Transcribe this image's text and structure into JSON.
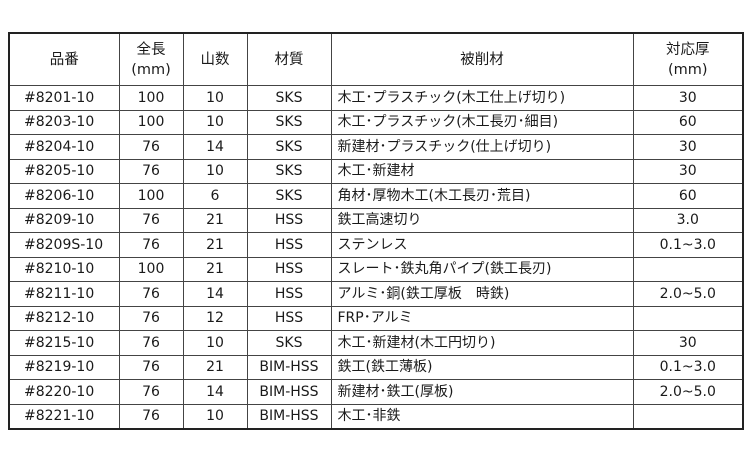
{
  "headers": {
    "code": "品番",
    "length": "全長",
    "length_unit": "(mm)",
    "teeth": "山数",
    "material": "材質",
    "workpiece": "被削材",
    "thickness": "対応厚",
    "thickness_unit": "(mm)"
  },
  "rows": [
    {
      "code": "#8201-10",
      "length": "100",
      "teeth": "10",
      "material": "SKS",
      "workpiece": "木工･プラスチック(木工仕上げ切り)",
      "thickness": "30"
    },
    {
      "code": "#8203-10",
      "length": "100",
      "teeth": "10",
      "material": "SKS",
      "workpiece": "木工･プラスチック(木工長刃･細目)",
      "thickness": "60"
    },
    {
      "code": "#8204-10",
      "length": "76",
      "teeth": "14",
      "material": "SKS",
      "workpiece": "新建材･プラスチック(仕上げ切り)",
      "thickness": "30"
    },
    {
      "code": "#8205-10",
      "length": "76",
      "teeth": "10",
      "material": "SKS",
      "workpiece": "木工･新建材",
      "thickness": "30"
    },
    {
      "code": "#8206-10",
      "length": "100",
      "teeth": "6",
      "material": "SKS",
      "workpiece": "角材･厚物木工(木工長刃･荒目)",
      "thickness": "60"
    },
    {
      "code": "#8209-10",
      "length": "76",
      "teeth": "21",
      "material": "HSS",
      "workpiece": "鉄工高速切り",
      "thickness": "3.0"
    },
    {
      "code": "#8209S-10",
      "length": "76",
      "teeth": "21",
      "material": "HSS",
      "workpiece": "ステンレス",
      "thickness": "0.1~3.0"
    },
    {
      "code": "#8210-10",
      "length": "100",
      "teeth": "21",
      "material": "HSS",
      "workpiece": "スレート･鉄丸角パイプ(鉄工長刃)",
      "thickness": ""
    },
    {
      "code": "#8211-10",
      "length": "76",
      "teeth": "14",
      "material": "HSS",
      "workpiece": "アルミ･銅(鉄工厚板　時鉄)",
      "thickness": "2.0~5.0"
    },
    {
      "code": "#8212-10",
      "length": "76",
      "teeth": "12",
      "material": "HSS",
      "workpiece": "FRP･アルミ",
      "thickness": ""
    },
    {
      "code": "#8215-10",
      "length": "76",
      "teeth": "10",
      "material": "SKS",
      "workpiece": "木工･新建材(木工円切り)",
      "thickness": "30"
    },
    {
      "code": "#8219-10",
      "length": "76",
      "teeth": "21",
      "material": "BIM-HSS",
      "workpiece": "鉄工(鉄工薄板)",
      "thickness": "0.1~3.0"
    },
    {
      "code": "#8220-10",
      "length": "76",
      "teeth": "14",
      "material": "BIM-HSS",
      "workpiece": "新建材･鉄工(厚板)",
      "thickness": "2.0~5.0"
    },
    {
      "code": "#8221-10",
      "length": "76",
      "teeth": "10",
      "material": "BIM-HSS",
      "workpiece": "木工･非鉄",
      "thickness": ""
    }
  ]
}
